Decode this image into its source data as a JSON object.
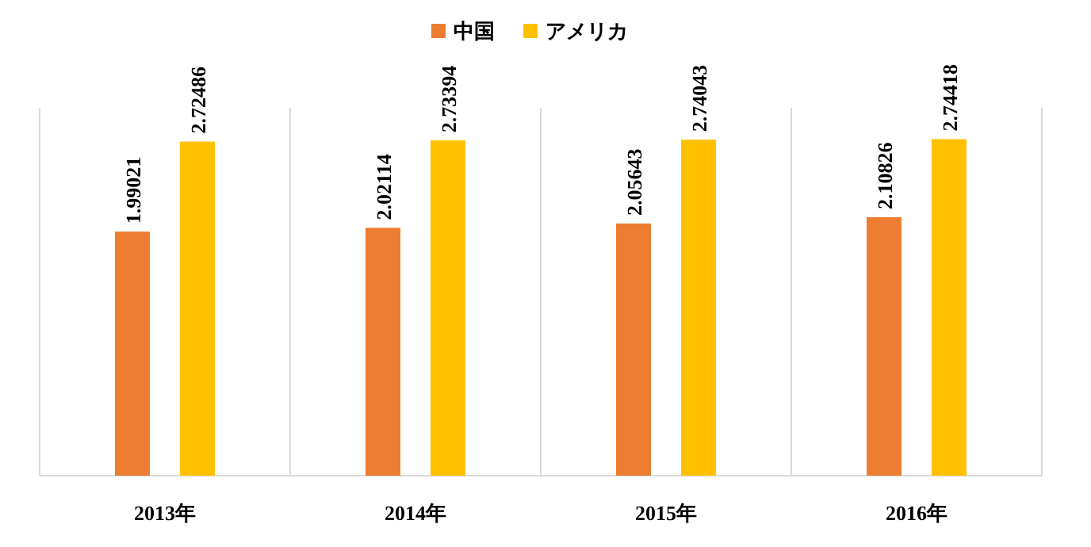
{
  "chart_data": {
    "type": "bar",
    "categories": [
      "2013年",
      "2014年",
      "2015年",
      "2016年"
    ],
    "series": [
      {
        "name": "中国",
        "color": "#ed7d31",
        "values": [
          1.99021,
          2.02114,
          2.05643,
          2.10826
        ]
      },
      {
        "name": "アメリカ",
        "color": "#ffc000",
        "values": [
          2.72486,
          2.73394,
          2.74043,
          2.74418
        ]
      }
    ],
    "ylim": [
      0,
      3
    ],
    "tick_labels": "x",
    "grid": "x",
    "legend": "top",
    "data_labels": true
  }
}
